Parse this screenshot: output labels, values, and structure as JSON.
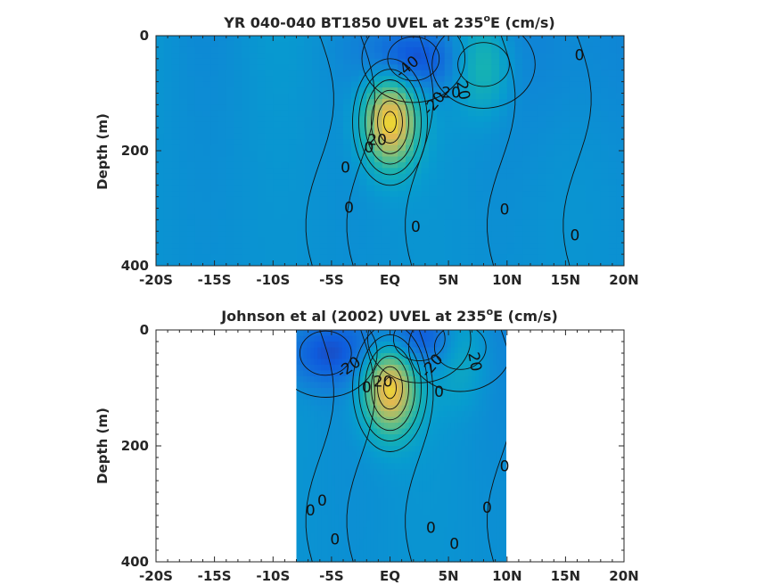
{
  "chart_data": [
    {
      "type": "heatmap",
      "title": "YR 040-040 BT1850 UVEL at 235",
      "title_sup": "o",
      "title_end": "E (cm/s)",
      "ylabel": "Depth (m)",
      "xlim": [
        -20,
        20
      ],
      "ylim": [
        0,
        400
      ],
      "y_reversed": true,
      "xticks": [
        -20,
        -15,
        -10,
        -5,
        0,
        5,
        10,
        15,
        20
      ],
      "xtick_labels": [
        "-20S",
        "-15S",
        "-10S",
        "-5S",
        "EQ",
        "5N",
        "10N",
        "15N",
        "20N"
      ],
      "yticks": [
        0,
        200,
        400
      ],
      "ytick_labels": [
        "0",
        "200",
        "400"
      ],
      "data_extent": [
        -20,
        20
      ],
      "features": [
        {
          "kind": "jet",
          "lat": 0,
          "depth": 150,
          "peak": 110
        },
        {
          "kind": "westward",
          "lat": 2,
          "depth": 40,
          "peak": -50
        },
        {
          "kind": "eastward",
          "lat": 8,
          "depth": 50,
          "peak": 40
        }
      ],
      "contour_labels": [
        {
          "text": "-40",
          "lat": 1.5,
          "depth": 55,
          "angle": -40
        },
        {
          "text": "-20",
          "lat": 5,
          "depth": 100,
          "angle": 0
        },
        {
          "text": "-20",
          "lat": 3.8,
          "depth": 118,
          "angle": -50
        },
        {
          "text": "20",
          "lat": 6.2,
          "depth": 95,
          "angle": 80
        },
        {
          "text": "0",
          "lat": 16.2,
          "depth": 35,
          "angle": 0
        },
        {
          "text": "0",
          "lat": -3.8,
          "depth": 230,
          "angle": 0
        },
        {
          "text": "0",
          "lat": -1.8,
          "depth": 195,
          "angle": 0
        },
        {
          "text": "20",
          "lat": -1.1,
          "depth": 182,
          "angle": 0
        },
        {
          "text": "0",
          "lat": -3.5,
          "depth": 300,
          "angle": 0
        },
        {
          "text": "0",
          "lat": 2.2,
          "depth": 333,
          "angle": 0
        },
        {
          "text": "0",
          "lat": 9.8,
          "depth": 303,
          "angle": 0
        },
        {
          "text": "0",
          "lat": 15.8,
          "depth": 348,
          "angle": 0
        }
      ]
    },
    {
      "type": "heatmap",
      "title": "Johnson et al (2002) UVEL at 235",
      "title_sup": "o",
      "title_end": "E (cm/s)",
      "ylabel": "Depth (m)",
      "xlim": [
        -20,
        20
      ],
      "ylim": [
        0,
        400
      ],
      "y_reversed": true,
      "xticks": [
        -20,
        -15,
        -10,
        -5,
        0,
        5,
        10,
        15,
        20
      ],
      "xtick_labels": [
        "-20S",
        "-15S",
        "-10S",
        "-5S",
        "EQ",
        "5N",
        "10N",
        "15N",
        "20N"
      ],
      "yticks": [
        0,
        200,
        400
      ],
      "ytick_labels": [
        "0",
        "200",
        "400"
      ],
      "data_extent": [
        -8,
        10
      ],
      "features": [
        {
          "kind": "jet",
          "lat": 0,
          "depth": 100,
          "peak": 110
        },
        {
          "kind": "westward",
          "lat": 2.5,
          "depth": 15,
          "peak": -50
        },
        {
          "kind": "westward",
          "lat": -5.5,
          "depth": 40,
          "peak": -40
        },
        {
          "kind": "eastward",
          "lat": 6,
          "depth": 30,
          "peak": 30
        }
      ],
      "contour_labels": [
        {
          "text": "-20",
          "lat": -3.5,
          "depth": 65,
          "angle": -35
        },
        {
          "text": "-20",
          "lat": 3.6,
          "depth": 62,
          "angle": -50
        },
        {
          "text": "20",
          "lat": 7.2,
          "depth": 55,
          "angle": 80
        },
        {
          "text": "20",
          "lat": -0.6,
          "depth": 90,
          "angle": 0
        },
        {
          "text": "0",
          "lat": -2,
          "depth": 100,
          "angle": 0
        },
        {
          "text": "0",
          "lat": 4.2,
          "depth": 108,
          "angle": 0
        },
        {
          "text": "0",
          "lat": 9.8,
          "depth": 236,
          "angle": 0
        },
        {
          "text": "0",
          "lat": -6.8,
          "depth": 312,
          "angle": 0
        },
        {
          "text": "0",
          "lat": -5.8,
          "depth": 295,
          "angle": 0
        },
        {
          "text": "0",
          "lat": -4.7,
          "depth": 362,
          "angle": 0
        },
        {
          "text": "0",
          "lat": 3.5,
          "depth": 342,
          "angle": 0
        },
        {
          "text": "0",
          "lat": 5.5,
          "depth": 370,
          "angle": 0
        },
        {
          "text": "0",
          "lat": 8.3,
          "depth": 308,
          "angle": 0
        }
      ]
    }
  ]
}
